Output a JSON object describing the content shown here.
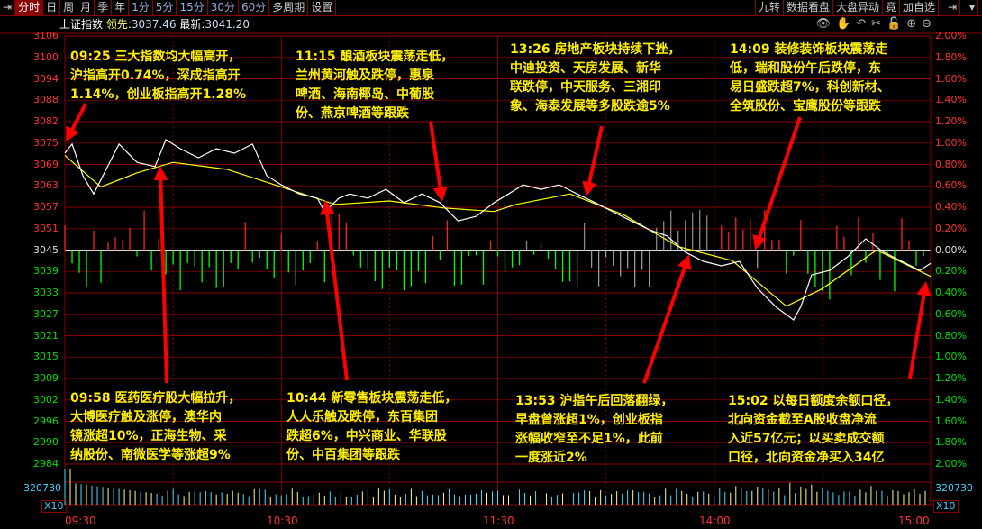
{
  "toolbar": {
    "left": [
      "分时",
      "日",
      "周",
      "月",
      "季",
      "年",
      "1分",
      "5分",
      "15分",
      "30分",
      "60分",
      "多周期",
      "设置"
    ],
    "active": "分时",
    "right": [
      "九转",
      "数据看盘",
      "大盘异动",
      "竟",
      "加自选"
    ]
  },
  "title": {
    "name": "上证指数",
    "lead_label": "领先:",
    "lead_value": "3037.46",
    "latest_label": "最新:",
    "latest_value": "3041.20"
  },
  "tools": [
    "eye-icon",
    "hand-icon",
    "undo-icon",
    "scissors-icon",
    "lock-icon",
    "zoom-in-icon",
    "zoom-out-icon"
  ],
  "colors": {
    "price": "#ffffff",
    "avg": "#ffff00",
    "up": "#ff2020",
    "down": "#00ff00",
    "grid": "#8b0000",
    "annotation": "#ffef00",
    "arrow": "#ff0000"
  },
  "chart_data": {
    "type": "line",
    "y_ticks": [
      "3106",
      "3100",
      "3094",
      "3088",
      "3082",
      "3075",
      "3069",
      "3063",
      "3057",
      "3051",
      "3045",
      "3039",
      "3033",
      "3027",
      "3021",
      "3015",
      "3009",
      "3002",
      "2996",
      "2990",
      "2984"
    ],
    "pct_ticks": [
      "2.00%",
      "1.80%",
      "1.60%",
      "1.40%",
      "1.20%",
      "1.00%",
      "0.80%",
      "0.60%",
      "0.40%",
      "0.20%",
      "0.00%",
      "0.20%",
      "0.40%",
      "0.60%",
      "0.80%",
      "1.00%",
      "1.20%",
      "1.40%",
      "1.60%",
      "1.80%",
      "2.00%"
    ],
    "ylim": [
      2984,
      3106
    ],
    "base": 3045,
    "x_ticks": [
      "09:30",
      "10:30",
      "11:30",
      "14:00",
      "15:00"
    ],
    "volume_label": "320730",
    "volume_scale": "X10",
    "price": [
      [
        "09:30",
        3072.6
      ],
      [
        "09:32",
        3075.2
      ],
      [
        "09:35",
        3066.2
      ],
      [
        "09:38",
        3061.0
      ],
      [
        "09:45",
        3075.2
      ],
      [
        "09:50",
        3070.0
      ],
      [
        "09:55",
        3068.8
      ],
      [
        "09:58",
        3076.5
      ],
      [
        "10:02",
        3073.9
      ],
      [
        "10:07",
        3071.3
      ],
      [
        "10:12",
        3073.9
      ],
      [
        "10:17",
        3072.6
      ],
      [
        "10:22",
        3075.2
      ],
      [
        "10:26",
        3066.2
      ],
      [
        "10:30",
        3063.6
      ],
      [
        "10:35",
        3061.0
      ],
      [
        "10:40",
        3059.8
      ],
      [
        "10:42",
        3055.9
      ],
      [
        "10:46",
        3059.8
      ],
      [
        "10:49",
        3061.0
      ],
      [
        "10:54",
        3059.8
      ],
      [
        "10:59",
        3062.3
      ],
      [
        "11:04",
        3058.5
      ],
      [
        "11:09",
        3061.0
      ],
      [
        "11:14",
        3058.5
      ],
      [
        "11:19",
        3053.3
      ],
      [
        "11:24",
        3054.6
      ],
      [
        "11:29",
        3058.5
      ],
      [
        "13:03",
        3061.0
      ],
      [
        "13:07",
        3063.6
      ],
      [
        "13:12",
        3062.3
      ],
      [
        "13:17",
        3063.6
      ],
      [
        "13:22",
        3061.0
      ],
      [
        "13:27",
        3058.5
      ],
      [
        "13:32",
        3055.9
      ],
      [
        "13:37",
        3053.3
      ],
      [
        "13:42",
        3050.8
      ],
      [
        "13:47",
        3049.0
      ],
      [
        "13:52",
        3044.4
      ],
      [
        "13:57",
        3041.8
      ],
      [
        "14:02",
        3040.5
      ],
      [
        "14:07",
        3041.8
      ],
      [
        "14:12",
        3034.1
      ],
      [
        "14:17",
        3028.9
      ],
      [
        "14:22",
        3025.1
      ],
      [
        "14:24",
        3028.9
      ],
      [
        "14:27",
        3037.9
      ],
      [
        "14:32",
        3039.2
      ],
      [
        "14:37",
        3043.1
      ],
      [
        "14:42",
        3048.2
      ],
      [
        "14:47",
        3044.4
      ],
      [
        "14:52",
        3041.8
      ],
      [
        "14:57",
        3039.2
      ],
      [
        "15:00",
        3041.2
      ]
    ],
    "avg": [
      [
        "09:30",
        3072
      ],
      [
        "09:40",
        3063
      ],
      [
        "09:50",
        3067
      ],
      [
        "10:00",
        3070
      ],
      [
        "10:15",
        3068
      ],
      [
        "10:30",
        3063
      ],
      [
        "10:45",
        3058
      ],
      [
        "11:00",
        3059
      ],
      [
        "11:15",
        3057
      ],
      [
        "11:29",
        3056
      ],
      [
        "13:05",
        3058
      ],
      [
        "13:20",
        3061
      ],
      [
        "13:35",
        3055
      ],
      [
        "13:50",
        3046
      ],
      [
        "14:05",
        3042
      ],
      [
        "14:20",
        3029
      ],
      [
        "14:30",
        3034
      ],
      [
        "14:45",
        3045
      ],
      [
        "15:00",
        3037.5
      ]
    ]
  },
  "annotations": [
    {
      "lines": [
        "09:25 三大指数均大幅高开，",
        "沪指高开0.74%，深成指高开",
        "1.14%，创业板指高开1.28%"
      ]
    },
    {
      "lines": [
        "11:15 酿酒板块震荡走低，",
        "兰州黄河触及跌停，惠泉",
        "啤酒、海南椰岛、中葡股",
        "份、燕京啤酒等跟跌"
      ]
    },
    {
      "lines": [
        "13:26 房地产板块持续下挫，",
        "中迪投资、天房发展、新华",
        "联跌停，中天服务、三湘印",
        "象、海泰发展等多股跌逾5%"
      ]
    },
    {
      "lines": [
        "14:09 装修装饰板块震荡走",
        "低，瑞和股份午后跌停，东",
        "易日盛跌超7%，科创新材、",
        "全筑股份、宝鹰股份等跟跌"
      ]
    },
    {
      "lines": [
        "09:58 医药医疗股大幅拉升，",
        "大博医疗触及涨停，澳华内",
        "镜涨超10%，正海生物、采",
        "纳股份、南微医学等涨超9%"
      ]
    },
    {
      "lines": [
        "10:44 新零售板块震荡走低，",
        "人人乐触及跌停，东百集团",
        "跌超6%，中兴商业、华联股",
        "份、中百集团等跟跌"
      ]
    },
    {
      "lines": [
        "13:53 沪指午后回落翻绿，",
        "早盘曾涨超1%，创业板指",
        "涨幅收窄至不足1%，此前",
        "一度涨近2%"
      ]
    },
    {
      "lines": [
        "15:02 以每日额度余额口径，",
        "北向资金截至A股收盘净流",
        "入近57亿元；以买卖成交额",
        "口径，北向资金净买入34亿"
      ]
    }
  ]
}
